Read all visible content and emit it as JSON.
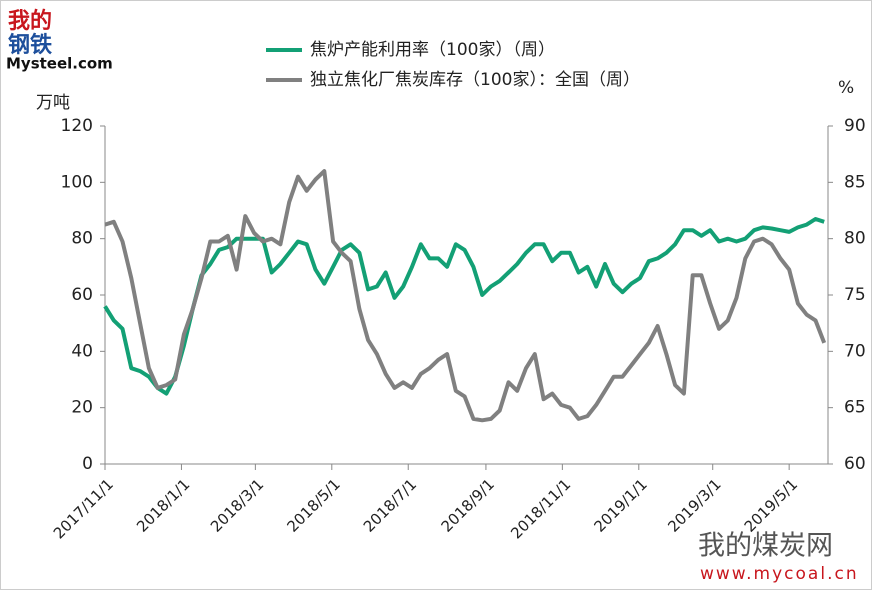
{
  "chart_data": {
    "type": "line",
    "y_label": "万吨",
    "y2_label": "%",
    "x": [
      "2017/11/1",
      "2017/11/8",
      "2017/11/15",
      "2017/11/22",
      "2017/11/29",
      "2017/12/6",
      "2017/12/13",
      "2017/12/20",
      "2017/12/27",
      "2018/1/3",
      "2018/1/10",
      "2018/1/17",
      "2018/1/24",
      "2018/1/31",
      "2018/2/7",
      "2018/2/14",
      "2018/2/21",
      "2018/2/28",
      "2018/3/7",
      "2018/3/14",
      "2018/3/21",
      "2018/3/28",
      "2018/4/4",
      "2018/4/11",
      "2018/4/18",
      "2018/4/25",
      "2018/5/2",
      "2018/5/9",
      "2018/5/16",
      "2018/5/23",
      "2018/5/30",
      "2018/6/6",
      "2018/6/13",
      "2018/6/20",
      "2018/6/27",
      "2018/7/4",
      "2018/7/11",
      "2018/7/18",
      "2018/7/25",
      "2018/8/1",
      "2018/8/8",
      "2018/8/15",
      "2018/8/22",
      "2018/8/29",
      "2018/9/5",
      "2018/9/12",
      "2018/9/19",
      "2018/9/26",
      "2018/10/3",
      "2018/10/10",
      "2018/10/17",
      "2018/10/24",
      "2018/10/31",
      "2018/11/7",
      "2018/11/14",
      "2018/11/21",
      "2018/11/28",
      "2018/12/5",
      "2018/12/12",
      "2018/12/19",
      "2018/12/26",
      "2019/1/2",
      "2019/1/9",
      "2019/1/16",
      "2019/1/23",
      "2019/1/30",
      "2019/2/6",
      "2019/2/13",
      "2019/2/20",
      "2019/2/27",
      "2019/3/6",
      "2019/3/13",
      "2019/3/20",
      "2019/3/27",
      "2019/4/3",
      "2019/4/10",
      "2019/4/17",
      "2019/4/24",
      "2019/5/1",
      "2019/5/8",
      "2019/5/15",
      "2019/5/22",
      "2019/5/29"
    ],
    "xlim": [
      "2017/11/1",
      "2019/6/1"
    ],
    "xticks": [
      "2017/11/1",
      "2018/1/1",
      "2018/3/1",
      "2018/5/1",
      "2018/7/1",
      "2018/9/1",
      "2018/11/1",
      "2019/1/1",
      "2019/3/1",
      "2019/5/1"
    ],
    "ylim": [
      0,
      120
    ],
    "yticks": [
      0,
      20,
      40,
      60,
      80,
      100,
      120
    ],
    "y2lim": [
      60,
      90
    ],
    "y2ticks": [
      60,
      65,
      70,
      75,
      80,
      85,
      90
    ],
    "grid": false,
    "series": [
      {
        "name": "焦炉产能利用率（100家）（周）",
        "color": "#13a075",
        "axis": "y2",
        "values": [
          74,
          72.75,
          72,
          68.5,
          68.25,
          67.75,
          66.75,
          66.25,
          67.75,
          70.5,
          73.75,
          76.75,
          77.75,
          79,
          79.25,
          80,
          80,
          80,
          80,
          77,
          77.75,
          78.75,
          79.75,
          79.5,
          77.25,
          76,
          77.5,
          79,
          79.5,
          78.75,
          75.5,
          75.75,
          77,
          74.75,
          75.75,
          77.5,
          79.5,
          78.25,
          78.25,
          77.5,
          79.5,
          79,
          77.5,
          75,
          75.75,
          76.25,
          77,
          77.75,
          78.75,
          79.5,
          79.5,
          78,
          78.75,
          78.75,
          77,
          77.5,
          75.75,
          77.75,
          76,
          75.25,
          76,
          76.5,
          78,
          78.25,
          78.75,
          79.5,
          80.75,
          80.75,
          80.25,
          80.75,
          79.75,
          80,
          79.75,
          80,
          80.75,
          81,
          80.9,
          80.75,
          80.6,
          81,
          81.25,
          81.75,
          81.5
        ]
      },
      {
        "name": "独立焦化厂焦炭库存（100家）：全国（周）",
        "color": "#808080",
        "axis": "y",
        "values": [
          85,
          86,
          79,
          66,
          50,
          34,
          27,
          28,
          30,
          46,
          55,
          66,
          79,
          79,
          81,
          69,
          88,
          82,
          79,
          80,
          78,
          93,
          102,
          97,
          101,
          104,
          79,
          75,
          72,
          55,
          44,
          39,
          32,
          27,
          29,
          27,
          32,
          34,
          37,
          39,
          26,
          24,
          16,
          15.5,
          16,
          19,
          29,
          26,
          34,
          39,
          23,
          25,
          21,
          20,
          16,
          17,
          21,
          26,
          31,
          31,
          35,
          39,
          43,
          49,
          39,
          28,
          25,
          67,
          67,
          57,
          48,
          51,
          59,
          73,
          79,
          80,
          78,
          73,
          69,
          57,
          53,
          51,
          43
        ]
      }
    ]
  },
  "logo": {
    "top": "我的",
    "middle": "钢铁",
    "bottom": "Mysteel.com"
  },
  "watermark": {
    "name": "我的煤炭网",
    "url": "www.mycoal.cn"
  }
}
